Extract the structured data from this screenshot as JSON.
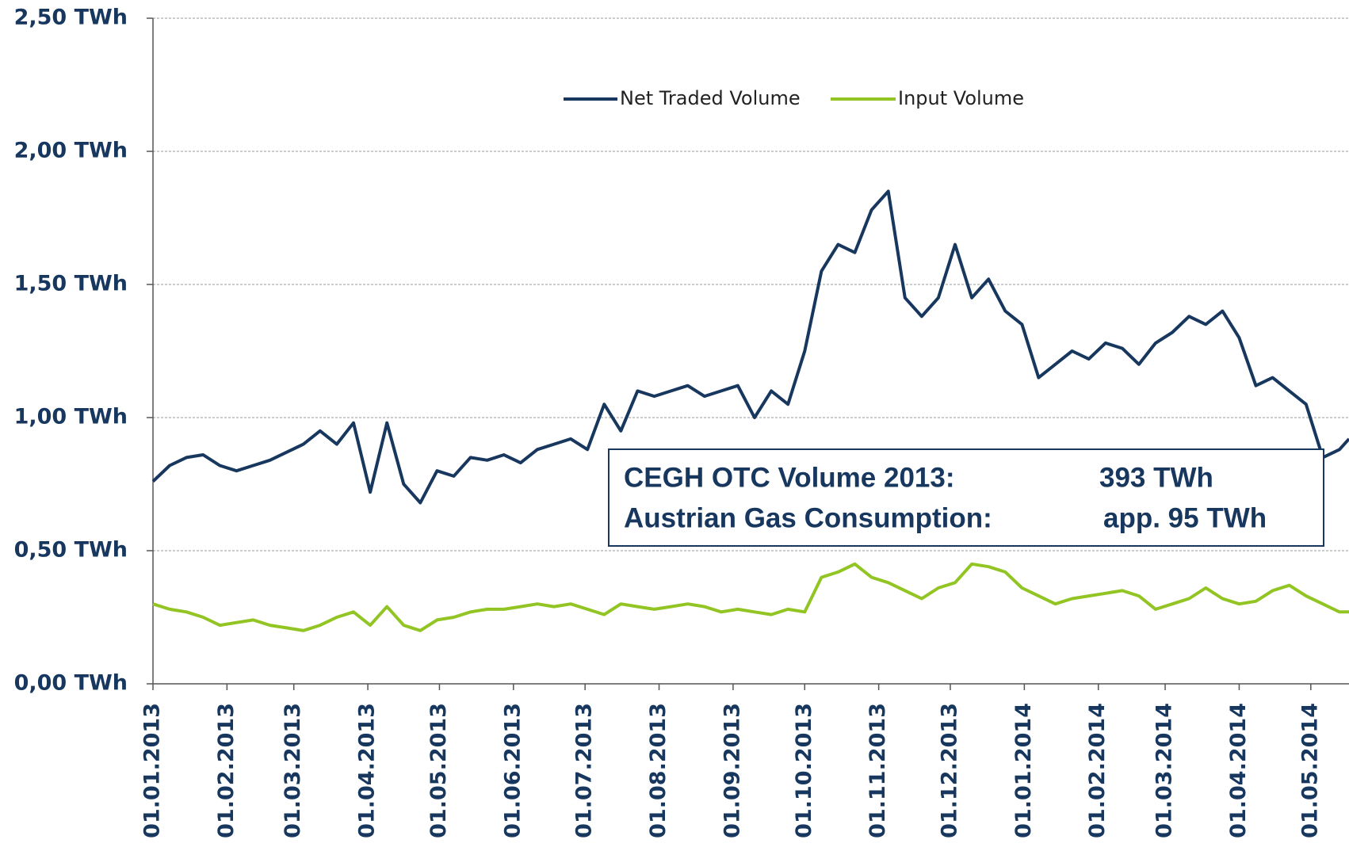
{
  "chart_data": {
    "type": "line",
    "legend": "top",
    "grid": true,
    "x": [
      "2013-01-01",
      "2013-01-08",
      "2013-01-15",
      "2013-01-22",
      "2013-01-29",
      "2013-02-05",
      "2013-02-12",
      "2013-02-19",
      "2013-02-26",
      "2013-03-05",
      "2013-03-12",
      "2013-03-19",
      "2013-03-26",
      "2013-04-02",
      "2013-04-09",
      "2013-04-16",
      "2013-04-23",
      "2013-04-30",
      "2013-05-07",
      "2013-05-14",
      "2013-05-21",
      "2013-05-28",
      "2013-06-04",
      "2013-06-11",
      "2013-06-18",
      "2013-06-25",
      "2013-07-02",
      "2013-07-09",
      "2013-07-16",
      "2013-07-23",
      "2013-07-30",
      "2013-08-06",
      "2013-08-13",
      "2013-08-20",
      "2013-08-27",
      "2013-09-03",
      "2013-09-10",
      "2013-09-17",
      "2013-09-24",
      "2013-10-01",
      "2013-10-08",
      "2013-10-15",
      "2013-10-22",
      "2013-10-29",
      "2013-11-05",
      "2013-11-12",
      "2013-11-19",
      "2013-11-26",
      "2013-12-03",
      "2013-12-10",
      "2013-12-17",
      "2013-12-24",
      "2013-12-31",
      "2014-01-07",
      "2014-01-14",
      "2014-01-21",
      "2014-01-28",
      "2014-02-04",
      "2014-02-11",
      "2014-02-18",
      "2014-02-25",
      "2014-03-04",
      "2014-03-11",
      "2014-03-18",
      "2014-03-25",
      "2014-04-01",
      "2014-04-08",
      "2014-04-15",
      "2014-04-22",
      "2014-04-29",
      "2014-05-06",
      "2014-05-13",
      "2014-05-17"
    ],
    "series": [
      {
        "name": "Net Traded Volume",
        "color": "#17375e",
        "values": [
          0.76,
          0.82,
          0.85,
          0.86,
          0.82,
          0.8,
          0.82,
          0.84,
          0.87,
          0.9,
          0.95,
          0.9,
          0.98,
          0.72,
          0.98,
          0.75,
          0.68,
          0.8,
          0.78,
          0.85,
          0.84,
          0.86,
          0.83,
          0.88,
          0.9,
          0.92,
          0.88,
          1.05,
          0.95,
          1.1,
          1.08,
          1.1,
          1.12,
          1.08,
          1.1,
          1.12,
          1.0,
          1.1,
          1.05,
          1.25,
          1.55,
          1.65,
          1.62,
          1.78,
          1.85,
          1.45,
          1.38,
          1.45,
          1.65,
          1.45,
          1.52,
          1.4,
          1.35,
          1.15,
          1.2,
          1.25,
          1.22,
          1.28,
          1.26,
          1.2,
          1.28,
          1.32,
          1.38,
          1.35,
          1.4,
          1.3,
          1.12,
          1.15,
          1.1,
          1.05,
          0.85,
          0.88,
          0.92
        ]
      },
      {
        "name": "Input Volume",
        "color": "#92c523",
        "values": [
          0.3,
          0.28,
          0.27,
          0.25,
          0.22,
          0.23,
          0.24,
          0.22,
          0.21,
          0.2,
          0.22,
          0.25,
          0.27,
          0.22,
          0.29,
          0.22,
          0.2,
          0.24,
          0.25,
          0.27,
          0.28,
          0.28,
          0.29,
          0.3,
          0.29,
          0.3,
          0.28,
          0.26,
          0.3,
          0.29,
          0.28,
          0.29,
          0.3,
          0.29,
          0.27,
          0.28,
          0.27,
          0.26,
          0.28,
          0.27,
          0.4,
          0.42,
          0.45,
          0.4,
          0.38,
          0.35,
          0.32,
          0.36,
          0.38,
          0.45,
          0.44,
          0.42,
          0.36,
          0.33,
          0.3,
          0.32,
          0.33,
          0.34,
          0.35,
          0.33,
          0.28,
          0.3,
          0.32,
          0.36,
          0.32,
          0.3,
          0.31,
          0.35,
          0.37,
          0.33,
          0.3,
          0.27,
          0.27
        ]
      }
    ],
    "xlim": [
      "2013-01-01",
      "2014-05-17"
    ],
    "xticks": [
      {
        "value": "2013-01-01",
        "label": "01.01.2013"
      },
      {
        "value": "2013-02-01",
        "label": "01.02.2013"
      },
      {
        "value": "2013-03-01",
        "label": "01.03.2013"
      },
      {
        "value": "2013-04-01",
        "label": "01.04.2013"
      },
      {
        "value": "2013-05-01",
        "label": "01.05.2013"
      },
      {
        "value": "2013-06-01",
        "label": "01.06.2013"
      },
      {
        "value": "2013-07-01",
        "label": "01.07.2013"
      },
      {
        "value": "2013-08-01",
        "label": "01.08.2013"
      },
      {
        "value": "2013-09-01",
        "label": "01.09.2013"
      },
      {
        "value": "2013-10-01",
        "label": "01.10.2013"
      },
      {
        "value": "2013-11-01",
        "label": "01.11.2013"
      },
      {
        "value": "2013-12-01",
        "label": "01.12.2013"
      },
      {
        "value": "2014-01-01",
        "label": "01.01.2014"
      },
      {
        "value": "2014-02-01",
        "label": "01.02.2014"
      },
      {
        "value": "2014-03-01",
        "label": "01.03.2014"
      },
      {
        "value": "2014-04-01",
        "label": "01.04.2014"
      },
      {
        "value": "2014-05-01",
        "label": "01.05.2014"
      }
    ],
    "ylim": [
      0,
      2.5
    ],
    "yticks": [
      {
        "value": 0,
        "label": "0,00 TWh"
      },
      {
        "value": 0.5,
        "label": "0,50 TWh"
      },
      {
        "value": 1,
        "label": "1,00 TWh"
      },
      {
        "value": 1.5,
        "label": "1,50 TWh"
      },
      {
        "value": 2,
        "label": "2,00 TWh"
      },
      {
        "value": 2.5,
        "label": "2,50 TWh"
      }
    ],
    "annotation": [
      {
        "label": "CEGH OTC Volume 2013:",
        "value": "393 TWh"
      },
      {
        "label": "Austrian Gas Consumption:",
        "value": "app. 95 TWh"
      }
    ]
  }
}
